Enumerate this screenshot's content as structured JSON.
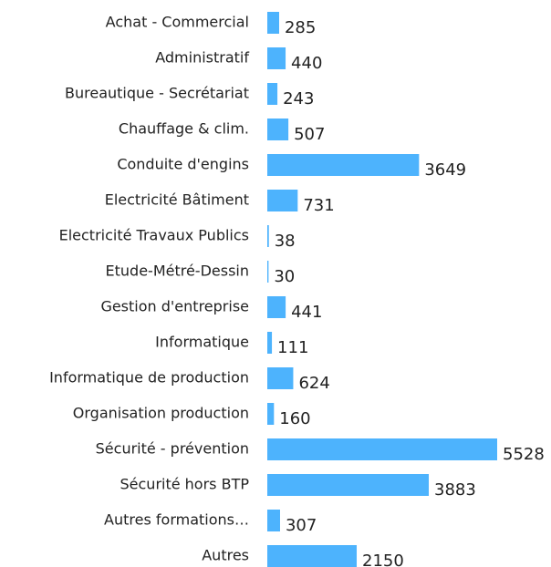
{
  "chart_data": {
    "type": "bar",
    "orientation": "horizontal",
    "color": "#4db3fd",
    "categories": [
      "Achat - Commercial",
      "Administratif",
      "Bureautique - Secrétariat",
      "Chauffage & clim.",
      "Conduite d'engins",
      "Electricité Bâtiment",
      "Electricité Travaux Publics",
      "Etude-Métré-Dessin",
      "Gestion d'entreprise",
      "Informatique",
      "Informatique de production",
      "Organisation production",
      "Sécurité - prévention",
      "Sécurité hors BTP",
      "Autres formations…",
      "Autres"
    ],
    "values": [
      285,
      440,
      243,
      507,
      3649,
      731,
      38,
      30,
      441,
      111,
      624,
      160,
      5528,
      3883,
      307,
      2150
    ]
  }
}
